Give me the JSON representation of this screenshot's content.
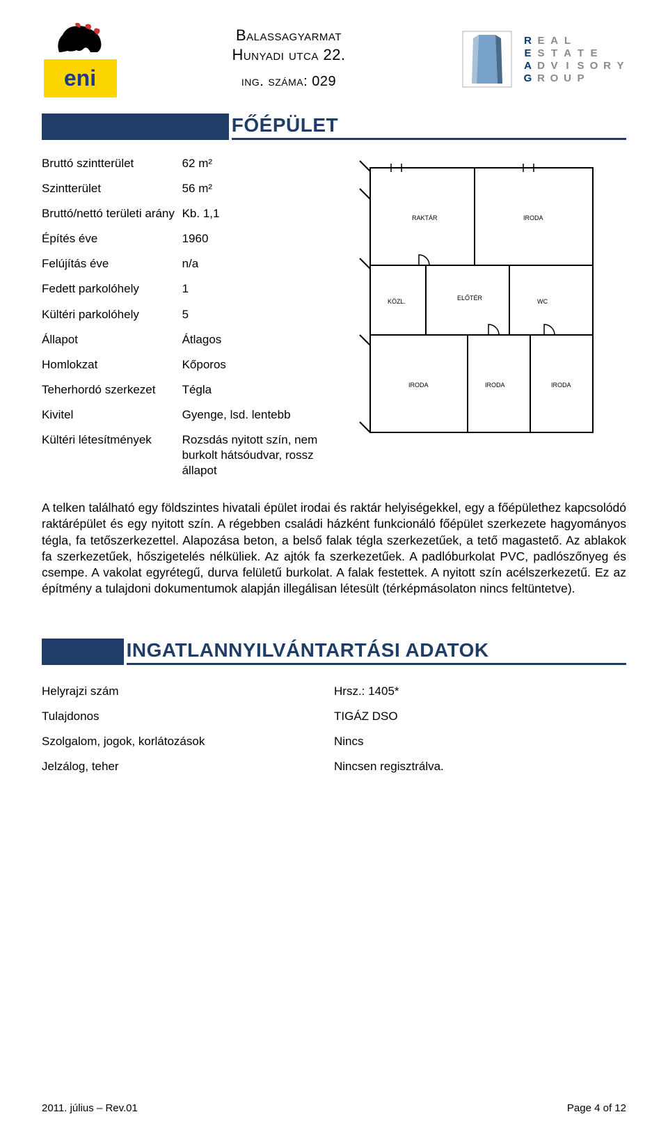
{
  "colors": {
    "brand_navy": "#1f3d66",
    "eni_yellow": "#fdd600",
    "eni_blue": "#1d3b87",
    "reag_navy": "#003a70",
    "reag_gray": "#8a8a8a",
    "text": "#000000",
    "background": "#ffffff"
  },
  "header": {
    "eni_text": "eni",
    "line1": "Balassagyarmat",
    "line2": "Hunyadi utca 22.",
    "line3": "ing. száma: 029",
    "reag": {
      "row1": [
        "R",
        "E",
        "A",
        "L",
        "",
        "",
        "",
        ""
      ],
      "row2": [
        "E",
        "S",
        "T",
        "A",
        "T",
        "E",
        "",
        ""
      ],
      "row3": [
        "A",
        "D",
        "V",
        "I",
        "S",
        "O",
        "R",
        "Y"
      ],
      "row4": [
        "G",
        "R",
        "O",
        "U",
        "P",
        "",
        "",
        ""
      ]
    }
  },
  "section1": {
    "title": "FŐÉPÜLET",
    "rows": [
      {
        "label": "Bruttó szintterület",
        "value": "62 m²"
      },
      {
        "label": "Szintterület",
        "value": "56 m²"
      },
      {
        "label": "Bruttó/nettó területi arány",
        "value": "Kb. 1,1"
      },
      {
        "label": "Építés éve",
        "value": "1960"
      },
      {
        "label": "Felújítás éve",
        "value": "n/a"
      },
      {
        "label": "Fedett parkolóhely",
        "value": "1"
      },
      {
        "label": "Kültéri parkolóhely",
        "value": "5"
      },
      {
        "label": "Állapot",
        "value": "Átlagos"
      },
      {
        "label": "Homlokzat",
        "value": "Kőporos"
      },
      {
        "label": "Teherhordó szerkezet",
        "value": "Tégla"
      },
      {
        "label": "Kivitel",
        "value": "Gyenge, lsd. lentebb"
      },
      {
        "label": "Kültéri létesítmények",
        "value": "Rozsdás nyitott szín, nem burkolt hátsóudvar, rossz állapot"
      }
    ]
  },
  "body_text": "A telken található egy földszintes hivatali épület irodai és raktár helyiségekkel, egy a főépülethez kapcsolódó raktárépület és egy nyitott szín. A régebben családi házként funkcionáló főépület szerkezete hagyományos tégla, fa tetőszerkezettel. Alapozása beton, a belső falak tégla szerkezetűek, a tető magastető. Az ablakok fa szerkezetűek, hőszigetelés nélküliek. Az ajtók fa szerkezetűek. A padlóburkolat PVC, padlószőnyeg és csempe. A vakolat egyrétegű, durva felületű burkolat. A falak festettek. A nyitott szín acélszerkezetű. Ez az építmény a tulajdoni dokumentumok alapján illegálisan létesült (térképmásolaton nincs feltüntetve).",
  "section2": {
    "title": "INGATLANNYILVÁNTARTÁSI ADATOK",
    "rows": [
      {
        "label": "Helyrajzi szám",
        "value": "Hrsz.: 1405*"
      },
      {
        "label": "Tulajdonos",
        "value": "TIGÁZ DSO"
      },
      {
        "label": "Szolgalom, jogok, korlátozások",
        "value": "Nincs"
      },
      {
        "label": "Jelzálog, teher",
        "value": "Nincsen regisztrálva."
      }
    ]
  },
  "footer": {
    "left": "2011. július – Rev.01",
    "right": "Page 4 of 12"
  }
}
